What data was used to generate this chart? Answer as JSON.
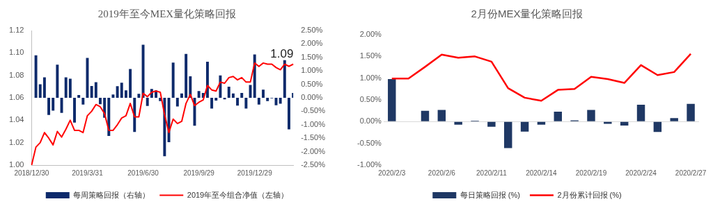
{
  "chart_data": [
    {
      "type": "bar",
      "title": "2019年至今MEX量化策略回报",
      "categories": [
        "2018/12/30",
        null,
        null,
        null,
        null,
        null,
        null,
        null,
        null,
        null,
        null,
        null,
        null,
        "2019/3/31",
        null,
        null,
        null,
        null,
        null,
        null,
        null,
        null,
        null,
        null,
        null,
        null,
        "2019/6/30",
        null,
        null,
        null,
        null,
        null,
        null,
        null,
        null,
        null,
        null,
        null,
        null,
        "2019/9/29",
        null,
        null,
        null,
        null,
        null,
        null,
        null,
        null,
        null,
        null,
        null,
        null,
        "2019/12/29",
        null,
        null,
        null,
        null,
        null,
        null,
        null,
        null,
        null
      ],
      "series": [
        {
          "name": "每周策略回报（右轴）",
          "color": "#0d2a6b",
          "axis": "y2",
          "values": [
            null,
            1.58,
            0.5,
            0.76,
            -0.64,
            -0.48,
            1.23,
            -0.56,
            0.76,
            0.71,
            -0.92,
            0.1,
            -0.25,
            1.48,
            0.44,
            0.58,
            -0.24,
            -0.74,
            -1.42,
            0.12,
            0.43,
            0.56,
            0.28,
            1.07,
            -1.27,
            0.15,
            1.97,
            -0.3,
            0.33,
            0.28,
            -0.12,
            -2.17,
            -1.65,
            1.31,
            -0.32,
            0.16,
            1.63,
            0.8,
            -1.04,
            0.25,
            0.18,
            1.34,
            -0.4,
            -0.1,
            0.83,
            -0.06,
            0.41,
            0.16,
            -0.29,
            0.18,
            -0.4,
            0.48,
            1.61,
            -0.25,
            0.3,
            -0.12,
            -0.02,
            -0.28,
            -0.22,
            1.4,
            -1.17,
            0.18
          ]
        },
        {
          "type": "line",
          "name": "2019年至今组合净值（左轴）",
          "color": "#ff0000",
          "values": [
            1.0,
            1.016,
            1.02,
            1.029,
            1.024,
            1.018,
            1.03,
            1.025,
            1.032,
            1.04,
            1.031,
            1.031,
            1.029,
            1.044,
            1.048,
            1.054,
            1.052,
            1.046,
            1.031,
            1.031,
            1.036,
            1.042,
            1.044,
            1.055,
            1.043,
            1.043,
            1.064,
            1.061,
            1.065,
            1.066,
            1.065,
            1.045,
            1.029,
            1.041,
            1.037,
            1.039,
            1.055,
            1.063,
            1.053,
            1.056,
            1.058,
            1.071,
            1.067,
            1.066,
            1.074,
            1.073,
            1.078,
            1.079,
            1.076,
            1.078,
            1.074,
            1.074,
            1.091,
            1.088,
            1.091,
            1.09,
            1.09,
            1.087,
            1.085,
            1.09,
            1.088,
            1.09
          ],
          "value_labels": [
            null,
            null,
            null,
            null,
            null,
            null,
            null,
            null,
            null,
            null,
            null,
            null,
            null,
            null,
            null,
            null,
            null,
            null,
            null,
            null,
            null,
            null,
            null,
            null,
            null,
            null,
            null,
            null,
            null,
            null,
            null,
            null,
            null,
            null,
            null,
            null,
            null,
            null,
            null,
            null,
            null,
            null,
            null,
            null,
            null,
            null,
            null,
            null,
            null,
            null,
            null,
            null,
            null,
            null,
            null,
            null,
            null,
            null,
            null,
            "1.09",
            null,
            null
          ]
        }
      ],
      "ylim": [
        1.0,
        1.12
      ],
      "yticks": [
        {
          "value": 1.0,
          "label": "1.00"
        },
        {
          "value": 1.02,
          "label": "1.02"
        },
        {
          "value": 1.04,
          "label": "1.04"
        },
        {
          "value": 1.06,
          "label": "1.06"
        },
        {
          "value": 1.08,
          "label": "1.08"
        },
        {
          "value": 1.1,
          "label": "1.10"
        },
        {
          "value": 1.12,
          "label": "1.12"
        }
      ],
      "y2lim": [
        -2.5,
        2.5
      ],
      "y2ticks": [
        {
          "value": -2.5,
          "label": "-2.50%"
        },
        {
          "value": -2,
          "label": "-2.00%"
        },
        {
          "value": -1.5,
          "label": "-1.50%"
        },
        {
          "value": -1,
          "label": "-1.00%"
        },
        {
          "value": -0.5,
          "label": "-0.50%"
        },
        {
          "value": 0,
          "label": "0.00%"
        },
        {
          "value": 0.5,
          "label": "0.50%"
        },
        {
          "value": 1,
          "label": "1.00%"
        },
        {
          "value": 1.5,
          "label": "1.50%"
        },
        {
          "value": 2,
          "label": "2.00%"
        },
        {
          "value": 2.5,
          "label": "2.50%"
        }
      ],
      "legend": "bottom",
      "marker": "none"
    },
    {
      "type": "bar",
      "title": "2月份MEX量化策略回报",
      "categories": [
        "2020/2/3",
        null,
        null,
        "2020/2/6",
        null,
        null,
        "2020/2/11",
        null,
        null,
        "2020/2/14",
        null,
        null,
        "2020/2/19",
        null,
        null,
        "2020/2/24",
        null,
        null,
        "2020/2/27"
      ],
      "series": [
        {
          "name": "每日策略回报 (%)",
          "color": "#1f3864",
          "values": [
            0.98,
            0,
            0.25,
            0.27,
            -0.07,
            0.02,
            -0.12,
            -0.61,
            -0.23,
            -0.07,
            0.23,
            0.03,
            0.27,
            -0.05,
            -0.09,
            0.39,
            -0.24,
            0.08,
            0.41
          ]
        },
        {
          "type": "line",
          "name": "2月份累计回报 (%)",
          "color": "#ff0000",
          "values": [
            0.99,
            0.99,
            1.26,
            1.54,
            1.47,
            1.5,
            1.38,
            0.77,
            0.55,
            0.48,
            0.73,
            0.75,
            1.03,
            0.98,
            0.89,
            1.3,
            1.07,
            1.14,
            1.56
          ]
        }
      ],
      "ylim": [
        -1,
        2
      ],
      "yticks": [
        {
          "value": -1,
          "label": "-1.00%"
        },
        {
          "value": -0.5,
          "label": "-0.50%"
        },
        {
          "value": 0,
          "label": "0.00%"
        },
        {
          "value": 0.5,
          "label": "0.50%"
        },
        {
          "value": 1,
          "label": "1.00%"
        },
        {
          "value": 1.5,
          "label": "1.50%"
        },
        {
          "value": 2,
          "label": "2.00%"
        }
      ],
      "legend": "bottom",
      "marker": "none"
    }
  ]
}
